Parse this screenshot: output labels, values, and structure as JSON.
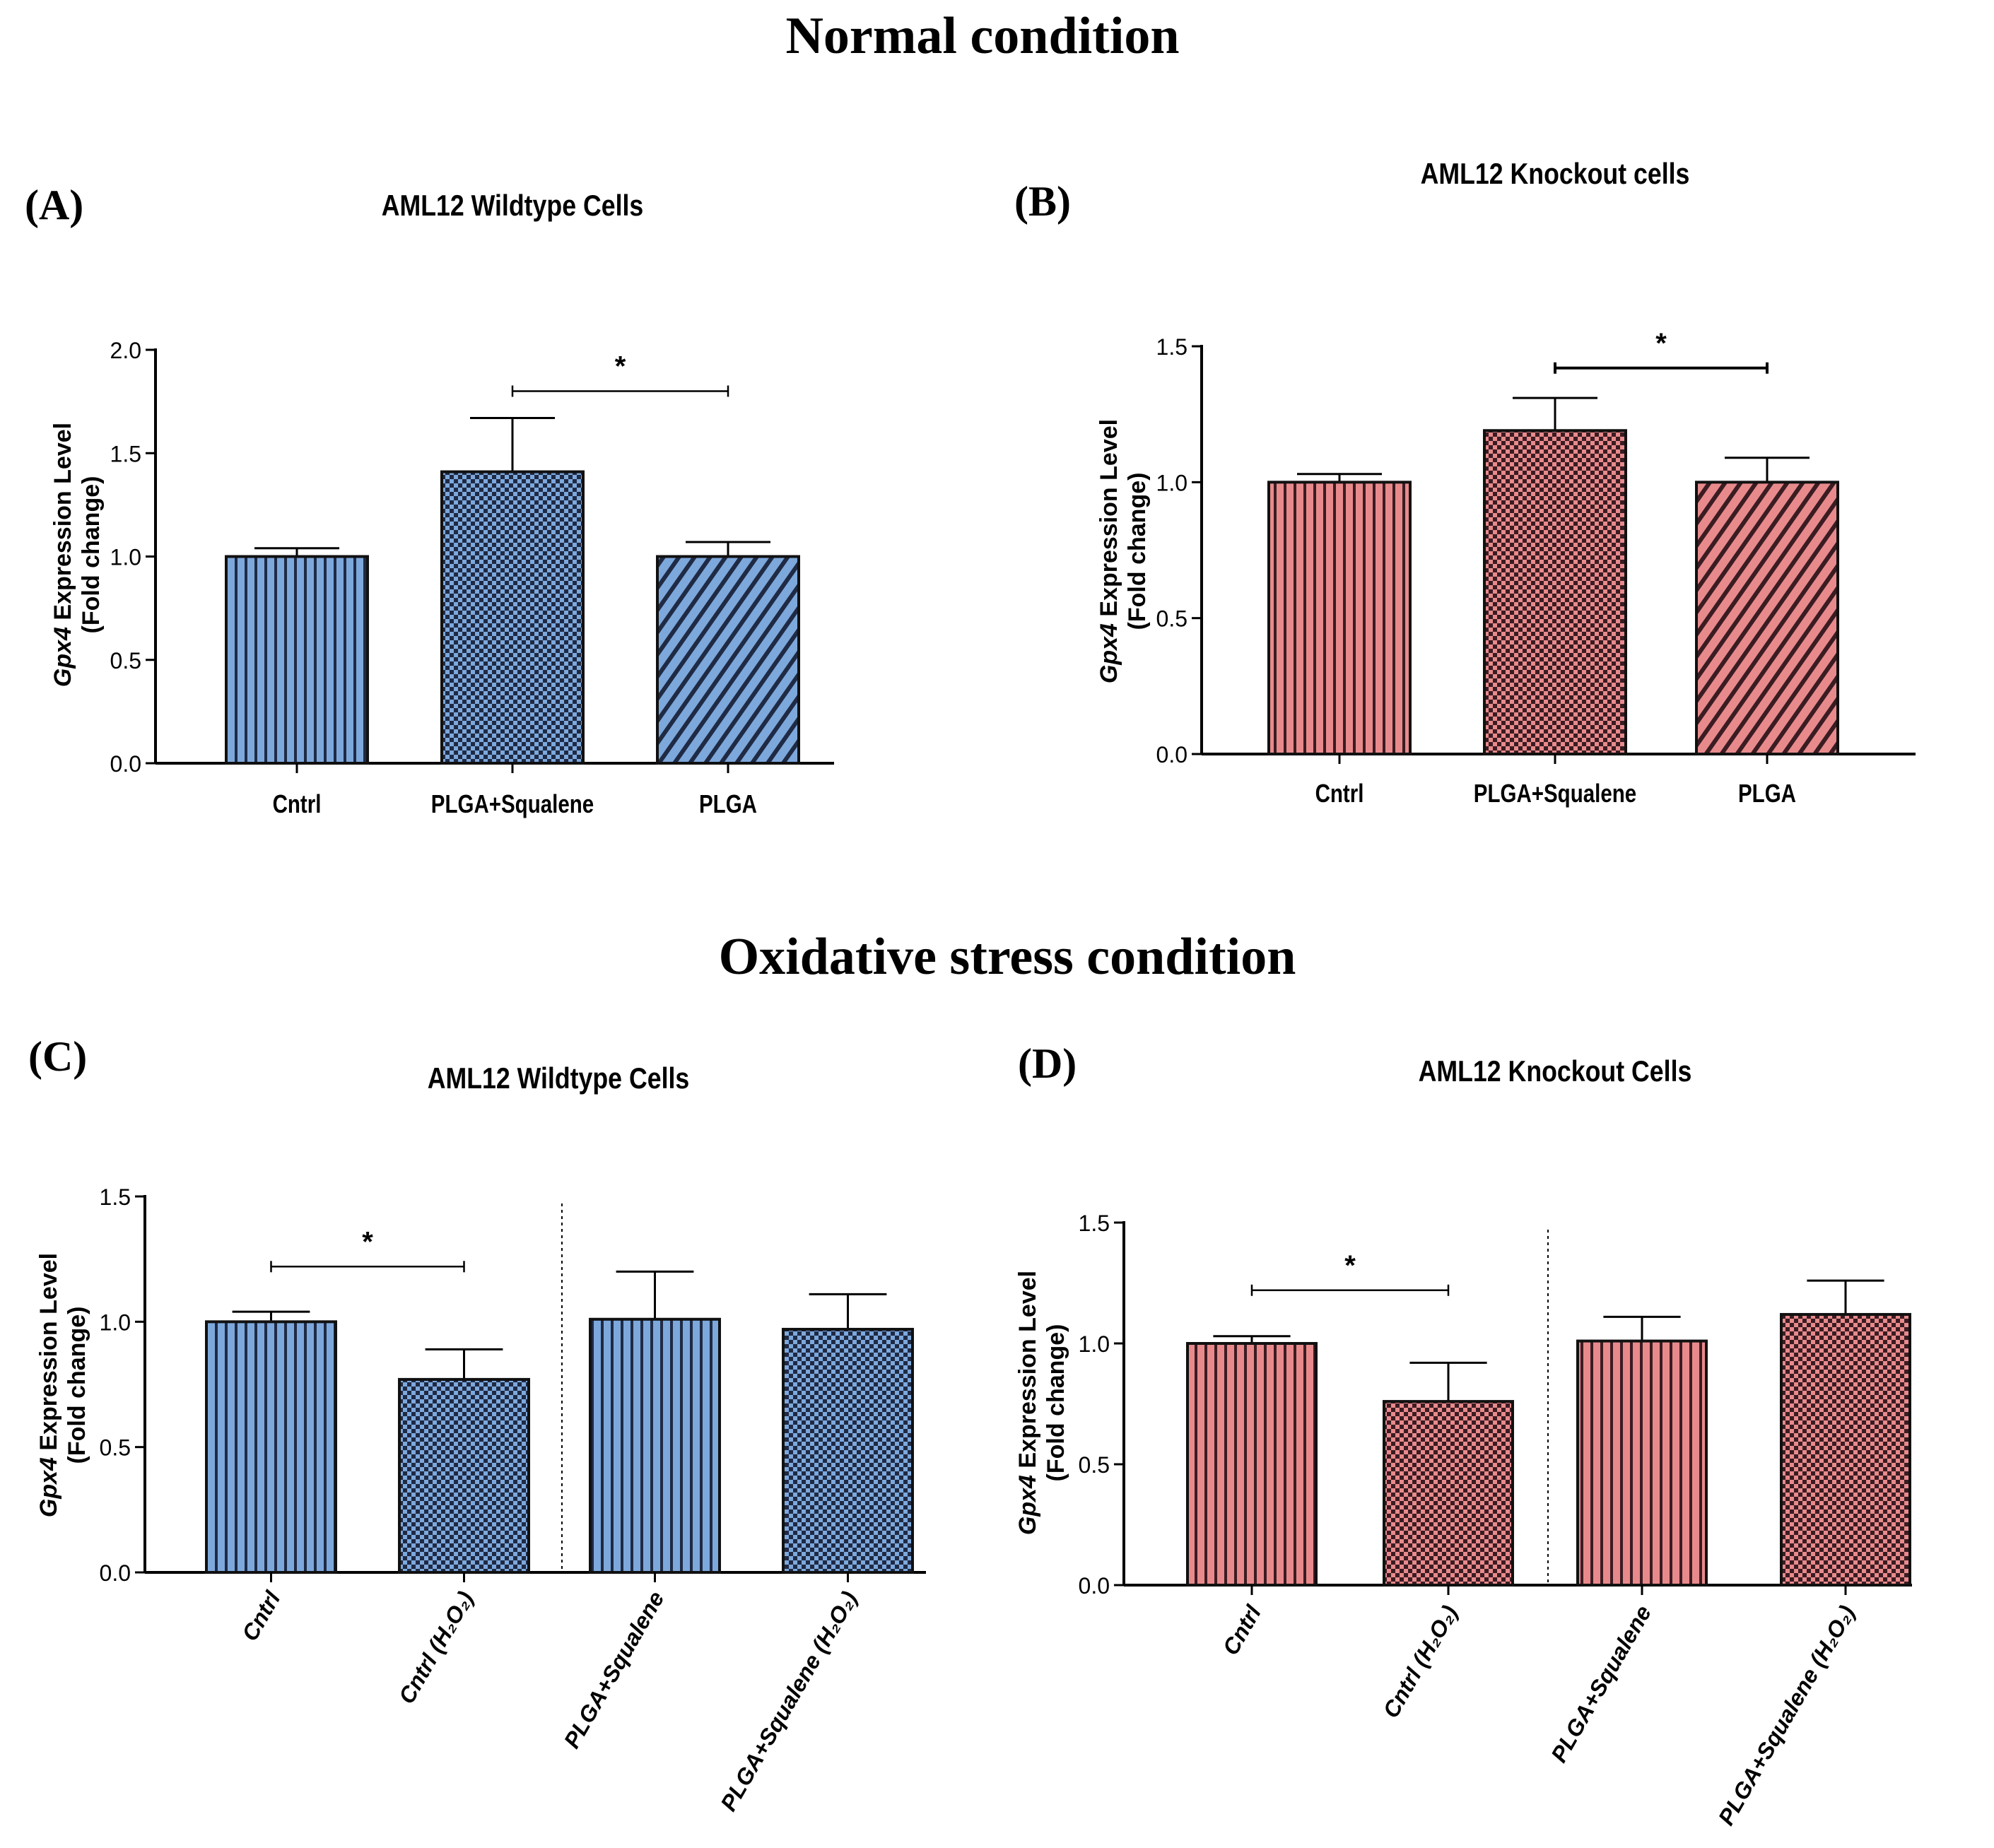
{
  "sections": {
    "normal": "Normal condition",
    "oxidative": "Oxidative stress condition"
  },
  "colors": {
    "blue": "#7da8dc",
    "red": "#e88a8c",
    "wildtype_dark": "#1f2a44",
    "knockout_dark": "#3a1c22",
    "axis": "#000000"
  },
  "chart_data": [
    {
      "panel": "(A)",
      "type": "bar",
      "title": "AML12 Wildtype Cells",
      "ylabel_italic": "Gpx4",
      "ylabel_rest": " Expression Level",
      "ylabel_line2": "(Fold change)",
      "ylim": [
        0,
        2.0
      ],
      "yticks": [
        "0.0",
        "0.5",
        "1.0",
        "1.5",
        "2.0"
      ],
      "categories": [
        "Cntrl",
        "PLGA+Squalene",
        "PLGA"
      ],
      "values": [
        1.0,
        1.41,
        1.0
      ],
      "errors": [
        0.04,
        0.26,
        0.07
      ],
      "patterns": [
        "vstripe",
        "check",
        "diag"
      ],
      "palette": "blue",
      "significance": [
        {
          "from": 1,
          "to": 2,
          "label": "*",
          "y": 1.8
        }
      ],
      "rotated_labels": false
    },
    {
      "panel": "(B)",
      "type": "bar",
      "title": "AML12 Knockout cells",
      "ylabel_italic": "Gpx4",
      "ylabel_rest": " Expression Level",
      "ylabel_line2": "(Fold change)",
      "ylim": [
        0,
        1.5
      ],
      "yticks": [
        "0.0",
        "0.5",
        "1.0",
        "1.5"
      ],
      "categories": [
        "Cntrl",
        "PLGA+Squalene",
        "PLGA"
      ],
      "values": [
        1.0,
        1.19,
        1.0
      ],
      "errors": [
        0.03,
        0.12,
        0.09
      ],
      "patterns": [
        "vstripe",
        "check",
        "diag"
      ],
      "palette": "red",
      "significance": [
        {
          "from": 1,
          "to": 2,
          "label": "*",
          "y": 1.42
        }
      ],
      "rotated_labels": false
    },
    {
      "panel": "(C)",
      "type": "bar",
      "title": "AML12 Wildtype Cells",
      "ylabel_italic": "Gpx4",
      "ylabel_rest": " Expression Level",
      "ylabel_line2": "(Fold change)",
      "ylim": [
        0,
        1.5
      ],
      "yticks": [
        "0.0",
        "0.5",
        "1.0",
        "1.5"
      ],
      "categories": [
        "Cntrl",
        "Cntrl (H₂O₂)",
        "PLGA+Squalene",
        "PLGA+Squalene (H₂O₂)"
      ],
      "values": [
        1.0,
        0.77,
        1.01,
        0.97
      ],
      "errors": [
        0.04,
        0.12,
        0.19,
        0.14
      ],
      "patterns": [
        "vstripe",
        "check",
        "vstripe",
        "check"
      ],
      "palette": "blue",
      "significance": [
        {
          "from": 0,
          "to": 1,
          "label": "*",
          "y": 1.22
        }
      ],
      "divider_after": 1,
      "rotated_labels": true
    },
    {
      "panel": "(D)",
      "type": "bar",
      "title": "AML12 Knockout Cells",
      "ylabel_italic": "Gpx4",
      "ylabel_rest": " Expression Level",
      "ylabel_line2": "(Fold change)",
      "ylim": [
        0,
        1.5
      ],
      "yticks": [
        "0.0",
        "0.5",
        "1.0",
        "1.5"
      ],
      "categories": [
        "Cntrl",
        "Cntrl (H₂O₂)",
        "PLGA+Squalene",
        "PLGA+Squalene (H₂O₂)"
      ],
      "values": [
        1.0,
        0.76,
        1.01,
        1.12
      ],
      "errors": [
        0.03,
        0.16,
        0.1,
        0.14
      ],
      "patterns": [
        "vstripe",
        "check",
        "vstripe",
        "check"
      ],
      "palette": "red",
      "significance": [
        {
          "from": 0,
          "to": 1,
          "label": "*",
          "y": 1.22
        }
      ],
      "divider_after": 1,
      "rotated_labels": true
    }
  ]
}
